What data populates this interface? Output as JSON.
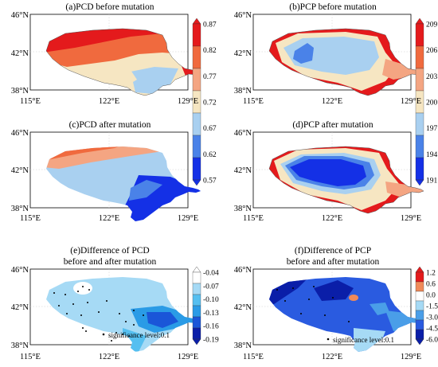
{
  "figure": {
    "panels": [
      {
        "id": "a",
        "title": [
          "(a)PCD before mutation"
        ],
        "colorbar": {
          "labels": [
            "0.87",
            "0.82",
            "0.77",
            "0.72",
            "0.67",
            "0.62",
            "0.57"
          ],
          "colors": [
            "#e41a1c",
            "#f06a3e",
            "#f4a582",
            "#f6e6c2",
            "#a9d0f0",
            "#4a82e8",
            "#1430e6"
          ]
        }
      },
      {
        "id": "b",
        "title": [
          "(b)PCP before mutation"
        ],
        "colorbar": {
          "labels": [
            "209",
            "206",
            "203",
            "200",
            "197",
            "194",
            "191"
          ],
          "colors": [
            "#e41a1c",
            "#f06a3e",
            "#f4a582",
            "#f6e6c2",
            "#a9d0f0",
            "#4a82e8",
            "#1430e6"
          ]
        }
      },
      {
        "id": "c",
        "title": [
          "(c)PCD after mutation"
        ]
      },
      {
        "id": "d",
        "title": [
          "(d)PCP after mutation"
        ]
      },
      {
        "id": "e",
        "title": [
          "(e)Difference of PCD",
          "before and after mutation"
        ],
        "note": "significance level:0.1",
        "colorbar": {
          "labels": [
            "-0.04",
            "-0.07",
            "-0.10",
            "-0.13",
            "-0.16",
            "-0.19"
          ],
          "colors": [
            "#ffffff",
            "#a6daf5",
            "#55bff0",
            "#2a9be6",
            "#1a56d8",
            "#0a1ea8"
          ]
        }
      },
      {
        "id": "f",
        "title": [
          "(f)Difference of PCP",
          "before and after mutation"
        ],
        "note": "significance level:0.1",
        "colorbar": {
          "labels": [
            "1.2",
            "0.6",
            "0.0",
            "-1.5",
            "-3.0",
            "-4.5",
            "-6.0"
          ],
          "colors": [
            "#e41a1c",
            "#f08a5a",
            "#ffffff",
            "#a6daf5",
            "#4a9ee8",
            "#2a5be0",
            "#0a1ea8"
          ]
        }
      }
    ],
    "axes": {
      "lat_labels": [
        "46°N",
        "42°N",
        "38°N"
      ],
      "lon_labels": [
        "115°E",
        "122°E",
        "129°E"
      ]
    }
  }
}
